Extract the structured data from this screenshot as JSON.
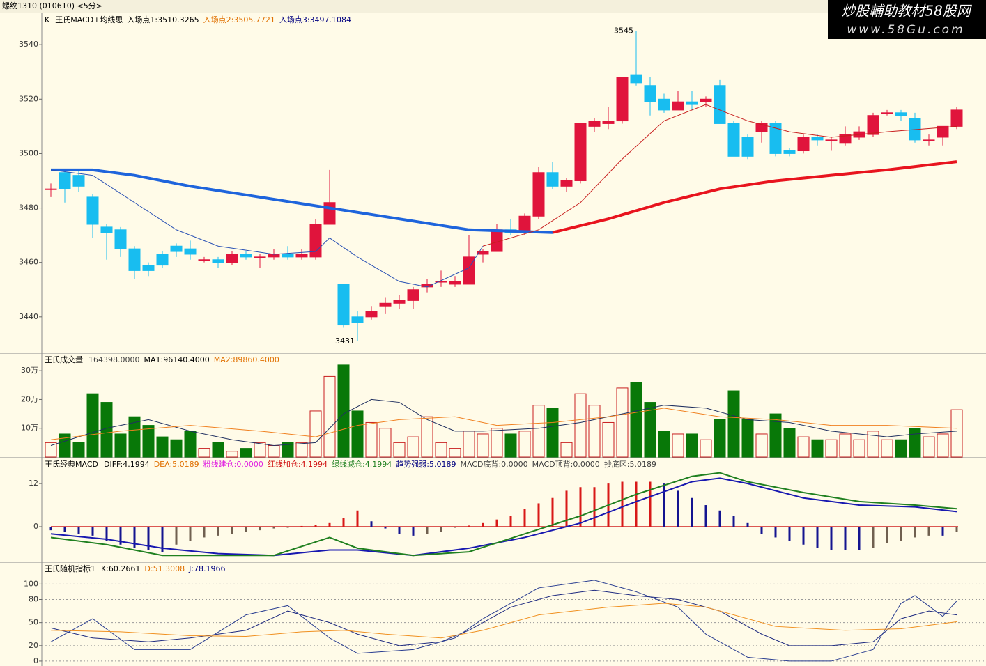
{
  "header": {
    "title": "螺纹1310 (010610) <5分>",
    "watermark": "炒股輔助教材58股网",
    "watermark_url": "www.58Gu.com"
  },
  "chart_data": [
    {
      "type": "candlestick",
      "title": "K",
      "stats": [
        "王氏MACD+均线思",
        "入场点1:3510.3265",
        "入场点2:3505.7721",
        "入场点3:3497.1084"
      ],
      "stat_colors": [
        "#000000",
        "#000000",
        "#e07000",
        "#000080"
      ],
      "open": [
        3487,
        3493,
        3492,
        3484,
        3473,
        3472,
        3465,
        3459,
        3463,
        3466,
        3465,
        3461,
        3461,
        3460,
        3463,
        3462,
        3462,
        3463,
        3462,
        3462,
        3474,
        3452,
        3440,
        3440,
        3444,
        3445,
        3446,
        3451,
        3453,
        3452,
        3452,
        3463,
        3464,
        3472,
        3471,
        3477,
        3493,
        3488,
        3490,
        3510,
        3511,
        3512,
        3529,
        3525,
        3520,
        3516,
        3519,
        3519,
        3525,
        3511,
        3506,
        3508,
        3511,
        3501,
        3501,
        3506,
        3505,
        3504,
        3506,
        3507,
        3515,
        3515,
        3513,
        3505,
        3506,
        3510
      ],
      "high": [
        3489,
        3494,
        3494,
        3485,
        3474,
        3473,
        3466,
        3460,
        3464,
        3467,
        3468,
        3462,
        3462,
        3464,
        3464,
        3463,
        3465,
        3466,
        3465,
        3476,
        3494,
        3452,
        3442,
        3444,
        3447,
        3448,
        3451,
        3454,
        3457,
        3455,
        3470,
        3465,
        3474,
        3476,
        3478,
        3495,
        3497,
        3491,
        3511,
        3513,
        3517,
        3528,
        3545,
        3528,
        3522,
        3523,
        3523,
        3521,
        3527,
        3512,
        3507,
        3512,
        3512,
        3502,
        3507,
        3507,
        3506,
        3510,
        3510,
        3515,
        3516,
        3516,
        3515,
        3507,
        3510,
        3517
      ],
      "low": [
        3484,
        3482,
        3486,
        3469,
        3461,
        3462,
        3454,
        3455,
        3458,
        3462,
        3461,
        3460,
        3458,
        3459,
        3461,
        3458,
        3461,
        3461,
        3461,
        3461,
        3474,
        3436,
        3431,
        3439,
        3441,
        3443,
        3443,
        3449,
        3451,
        3451,
        3452,
        3460,
        3464,
        3470,
        3470,
        3476,
        3487,
        3486,
        3489,
        3508,
        3509,
        3511,
        3525,
        3514,
        3515,
        3516,
        3516,
        3517,
        3511,
        3499,
        3498,
        3504,
        3499,
        3499,
        3500,
        3503,
        3501,
        3503,
        3505,
        3506,
        3514,
        3512,
        3504,
        3503,
        3503,
        3509
      ],
      "close": [
        3487,
        3487,
        3488,
        3474,
        3471,
        3465,
        3457,
        3457,
        3459,
        3464,
        3463,
        3461,
        3460,
        3463,
        3462,
        3462,
        3463,
        3462,
        3463,
        3474,
        3482,
        3437,
        3438,
        3442,
        3445,
        3446,
        3450,
        3452,
        3453,
        3453,
        3462,
        3464,
        3472,
        3471,
        3477,
        3493,
        3488,
        3490,
        3511,
        3512,
        3512,
        3528,
        3526,
        3519,
        3516,
        3519,
        3518,
        3520,
        3511,
        3499,
        3499,
        3511,
        3500,
        3500,
        3506,
        3505,
        3505,
        3507,
        3508,
        3514,
        3515,
        3514,
        3505,
        3505,
        3510,
        3516
      ],
      "up_color": "#e0143c",
      "down_color": "#18bdf0",
      "high_label": 3545,
      "low_label": 3431,
      "lines": [
        {
          "color": "#1e64dc",
          "width": 4,
          "x": [
            0,
            3,
            6,
            10,
            15,
            20,
            25,
            30,
            36
          ],
          "values": [
            3494,
            3494,
            3492,
            3488,
            3484,
            3480,
            3476,
            3472,
            3471
          ]
        },
        {
          "color": "#e8141e",
          "width": 4,
          "x": [
            36,
            40,
            44,
            48,
            52,
            56,
            60,
            65
          ],
          "values": [
            3471,
            3476,
            3482,
            3487,
            3490,
            3492,
            3494,
            3497
          ]
        },
        {
          "color": "#2850b4",
          "width": 1,
          "x": [
            0,
            3,
            6,
            9,
            12,
            16,
            19,
            20,
            22,
            25,
            27,
            30,
            31
          ],
          "values": [
            3494,
            3492,
            3482,
            3472,
            3466,
            3463,
            3464,
            3469,
            3462,
            3453,
            3451,
            3458,
            3466
          ]
        },
        {
          "color": "#c81e1e",
          "width": 1,
          "x": [
            31,
            35,
            38,
            41,
            44,
            47,
            50,
            53,
            56,
            60,
            65
          ],
          "values": [
            3466,
            3472,
            3482,
            3498,
            3512,
            3518,
            3512,
            3508,
            3506,
            3508,
            3510
          ]
        }
      ],
      "ylim": [
        3426.9,
        3551.3
      ],
      "yticks": [
        3440,
        3460,
        3480,
        3500,
        3520,
        3540
      ]
    },
    {
      "type": "volume",
      "title": "王氏成交量",
      "stats": [
        "164398.0000",
        "MA1:96140.4000",
        "MA2:89860.4000"
      ],
      "stat_colors": [
        "#404040",
        "#000000",
        "#e07000"
      ],
      "values": [
        50000,
        80000,
        50000,
        220000,
        190000,
        80000,
        140000,
        110000,
        70000,
        60000,
        90000,
        30000,
        50000,
        20000,
        30000,
        50000,
        40000,
        50000,
        50000,
        160000,
        280000,
        320000,
        160000,
        120000,
        100000,
        50000,
        70000,
        140000,
        50000,
        30000,
        90000,
        80000,
        100000,
        80000,
        90000,
        180000,
        170000,
        50000,
        220000,
        180000,
        120000,
        240000,
        260000,
        190000,
        90000,
        80000,
        80000,
        60000,
        130000,
        230000,
        130000,
        80000,
        150000,
        100000,
        70000,
        60000,
        60000,
        80000,
        60000,
        90000,
        60000,
        60000,
        100000,
        70000,
        80000,
        164398
      ],
      "up_color": "#c81e1e",
      "down_color": "#087808",
      "lines": [
        {
          "color": "#203060",
          "width": 1,
          "x": [
            0,
            4,
            7,
            10,
            13,
            16,
            19,
            21,
            23,
            25,
            27,
            29,
            31,
            35,
            38,
            41,
            44,
            47,
            50,
            53,
            56,
            60,
            62,
            65
          ],
          "values": [
            40000,
            100000,
            130000,
            90000,
            60000,
            40000,
            50000,
            150000,
            200000,
            190000,
            130000,
            90000,
            90000,
            100000,
            120000,
            150000,
            180000,
            170000,
            130000,
            120000,
            90000,
            70000,
            80000,
            90000
          ]
        },
        {
          "color": "#f08020",
          "width": 1,
          "x": [
            0,
            5,
            10,
            15,
            19,
            22,
            25,
            29,
            32,
            36,
            40,
            44,
            48,
            52,
            56,
            60,
            65
          ],
          "values": [
            60000,
            90000,
            110000,
            90000,
            70000,
            110000,
            130000,
            140000,
            110000,
            120000,
            140000,
            170000,
            140000,
            130000,
            110000,
            110000,
            100000
          ]
        }
      ],
      "ylim": [
        0,
        358500
      ],
      "yticks": [
        {
          "value": 100000,
          "label": "10万"
        },
        {
          "value": 200000,
          "label": "20万"
        },
        {
          "value": 300000,
          "label": "30万"
        }
      ]
    },
    {
      "type": "macd",
      "title": "王氏经典MACD",
      "stats": [
        "DIFF:4.1994",
        "DEA:5.0189",
        "粉线建仓:0.0000",
        "红线加仓:4.1994",
        "绿线减仓:4.1994",
        "趋势强弱:5.0189",
        "MACD底背:0.0000",
        "MACD顶背:0.0000",
        "抄底区:5.0189"
      ],
      "stat_colors": [
        "#000000",
        "#e07000",
        "#e020e0",
        "#d01010",
        "#208020",
        "#000080",
        "#404040",
        "#404040",
        "#404040"
      ],
      "values": [
        -1,
        -1.5,
        -2,
        -2.5,
        -4,
        -5,
        -6,
        -6.5,
        -7,
        -5,
        -4,
        -3,
        -2.5,
        -2,
        -1.5,
        -1,
        -0.5,
        -0.3,
        0.2,
        0.5,
        1,
        2.5,
        4.5,
        1.5,
        -0.5,
        -2,
        -2.5,
        -2,
        -1.5,
        -0.3,
        0.3,
        1,
        2,
        3,
        5,
        6.5,
        8,
        10,
        11,
        11,
        12,
        12.5,
        12.5,
        12.5,
        12,
        10,
        8,
        6,
        4.5,
        3,
        1,
        -2,
        -3,
        -4,
        -5,
        -6,
        -6.5,
        -6.5,
        -6.5,
        -6,
        -4.5,
        -4,
        -3,
        -2.5,
        -2.5,
        -1.5
      ],
      "up_color": "#d81818",
      "fall_color": "#141490",
      "neg_rise_color": "#706050",
      "lines": [
        {
          "color": "#1818b0",
          "width": 2,
          "x": [
            0,
            4,
            8,
            12,
            16,
            20,
            22,
            26,
            30,
            34,
            38,
            42,
            46,
            48,
            50,
            54,
            58,
            62,
            65
          ],
          "values": [
            -2,
            -3.5,
            -6,
            -7.5,
            -8,
            -6.5,
            -6.5,
            -8,
            -6,
            -3,
            1,
            7,
            12.5,
            13.5,
            12,
            8,
            6,
            5.5,
            4.2
          ]
        },
        {
          "color": "#208020",
          "width": 2,
          "x": [
            0,
            4,
            8,
            12,
            16,
            20,
            22,
            26,
            30,
            34,
            38,
            42,
            46,
            48,
            50,
            54,
            58,
            62,
            65
          ],
          "values": [
            -3,
            -5,
            -8,
            -8,
            -8,
            -3,
            -6,
            -8,
            -7,
            -2,
            3,
            9,
            14,
            15,
            12.5,
            9.5,
            7,
            6,
            5
          ]
        }
      ],
      "ylim": [
        -9.7,
        19
      ],
      "yticks": [
        0,
        12
      ]
    },
    {
      "type": "line",
      "title": "王氏随机指标1",
      "stats": [
        "K:60.2661",
        "D:51.3008",
        "J:78.1966"
      ],
      "stat_colors": [
        "#000000",
        "#e07000",
        "#000080"
      ],
      "lines": [
        {
          "color": "#1e2a80",
          "width": 1,
          "x": [
            0,
            3,
            7,
            10,
            14,
            17,
            20,
            22,
            25,
            28,
            30,
            33,
            36,
            39,
            42,
            45,
            48,
            51,
            53,
            56,
            59,
            61,
            63,
            65
          ],
          "values": [
            43,
            30,
            25,
            30,
            40,
            65,
            50,
            35,
            20,
            25,
            40,
            70,
            85,
            92,
            85,
            80,
            65,
            35,
            20,
            20,
            25,
            55,
            65,
            60
          ]
        },
        {
          "color": "#283c90",
          "width": 1,
          "x": [
            0,
            3,
            6,
            10,
            14,
            17,
            20,
            22,
            26,
            29,
            31,
            35,
            39,
            42,
            45,
            47,
            50,
            53,
            56,
            59,
            61,
            62,
            64,
            65
          ],
          "values": [
            25,
            55,
            15,
            15,
            60,
            72,
            30,
            10,
            15,
            30,
            55,
            95,
            105,
            90,
            70,
            35,
            5,
            0,
            0,
            15,
            75,
            85,
            58,
            78
          ]
        },
        {
          "color": "#f09020",
          "width": 1,
          "x": [
            0,
            5,
            10,
            14,
            18,
            21,
            24,
            28,
            31,
            35,
            40,
            44,
            47,
            52,
            57,
            61,
            65
          ],
          "values": [
            40,
            38,
            33,
            32,
            38,
            40,
            35,
            30,
            40,
            60,
            70,
            75,
            70,
            45,
            40,
            42,
            51
          ]
        }
      ],
      "grid": true,
      "ylim": [
        -6.4,
        127.5
      ],
      "yticks": [
        0,
        20,
        50,
        80,
        100
      ]
    }
  ]
}
